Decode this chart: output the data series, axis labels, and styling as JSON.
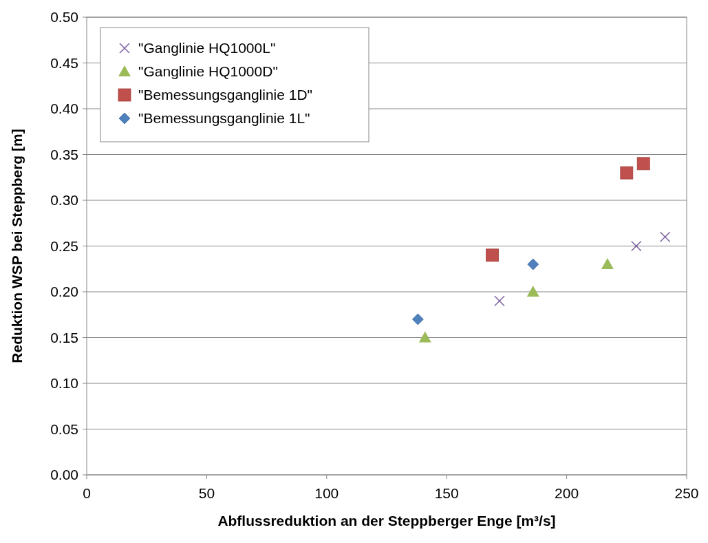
{
  "chart_data": {
    "type": "scatter",
    "xlabel": "Abflussreduktion an der Steppberger Enge [m³/s]",
    "ylabel": "Reduktion WSP bei Steppberg [m]",
    "xlim": [
      0,
      250
    ],
    "xticks": [
      0,
      50,
      100,
      150,
      200,
      250
    ],
    "ylim": [
      0,
      0.5
    ],
    "yticks": [
      {
        "value": 0,
        "label": "0.00"
      },
      {
        "value": 0.05,
        "label": "0.05"
      },
      {
        "value": 0.1,
        "label": "0.10"
      },
      {
        "value": 0.15,
        "label": "0.15"
      },
      {
        "value": 0.2,
        "label": "0.20"
      },
      {
        "value": 0.25,
        "label": "0.25"
      },
      {
        "value": 0.3,
        "label": "0.30"
      },
      {
        "value": 0.35,
        "label": "0.35"
      },
      {
        "value": 0.4,
        "label": "0.40"
      },
      {
        "value": 0.45,
        "label": "0.45"
      },
      {
        "value": 0.5,
        "label": "0.50"
      }
    ],
    "grid": "y",
    "legend": "top left",
    "series": [
      {
        "name": "\"Ganglinie HQ1000L\"",
        "color": "#8064a2",
        "marker": "cross",
        "x": [
          172,
          229,
          241
        ],
        "values": [
          0.19,
          0.25,
          0.26
        ]
      },
      {
        "name": "\"Ganglinie HQ1000D\"",
        "color": "#9bbb59",
        "marker": "triangle",
        "x": [
          141,
          186,
          217
        ],
        "values": [
          0.15,
          0.2,
          0.23
        ]
      },
      {
        "name": "\"Bemessungsganglinie 1D\"",
        "color": "#c0504d",
        "marker": "square",
        "x": [
          169,
          225,
          232
        ],
        "values": [
          0.24,
          0.33,
          0.34
        ]
      },
      {
        "name": "\"Bemessungsganglinie 1L\"",
        "color": "#4f81bd",
        "marker": "diamond",
        "x": [
          138,
          186
        ],
        "values": [
          0.17,
          0.23
        ]
      }
    ]
  }
}
